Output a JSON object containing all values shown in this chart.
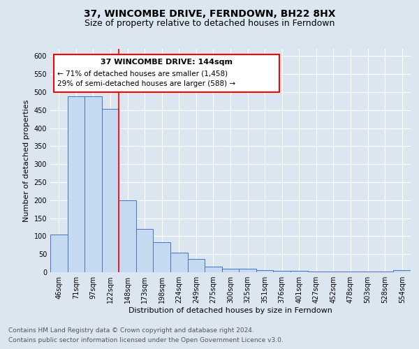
{
  "title": "37, WINCOMBE DRIVE, FERNDOWN, BH22 8HX",
  "subtitle": "Size of property relative to detached houses in Ferndown",
  "xlabel": "Distribution of detached houses by size in Ferndown",
  "ylabel": "Number of detached properties",
  "categories": [
    "46sqm",
    "71sqm",
    "97sqm",
    "122sqm",
    "148sqm",
    "173sqm",
    "198sqm",
    "224sqm",
    "249sqm",
    "275sqm",
    "300sqm",
    "325sqm",
    "351sqm",
    "376sqm",
    "401sqm",
    "427sqm",
    "452sqm",
    "478sqm",
    "503sqm",
    "528sqm",
    "554sqm"
  ],
  "values": [
    105,
    488,
    488,
    453,
    200,
    120,
    83,
    55,
    37,
    15,
    10,
    10,
    5,
    3,
    3,
    2,
    2,
    1,
    1,
    1,
    5
  ],
  "bar_color": "#c5d9f1",
  "bar_edge_color": "#4472c4",
  "ylim": [
    0,
    620
  ],
  "yticks": [
    0,
    50,
    100,
    150,
    200,
    250,
    300,
    350,
    400,
    450,
    500,
    550,
    600
  ],
  "red_line_index": 3,
  "annotation_title": "37 WINCOMBE DRIVE: 144sqm",
  "annotation_line1": "← 71% of detached houses are smaller (1,458)",
  "annotation_line2": "29% of semi-detached houses are larger (588) →",
  "footnote1": "Contains HM Land Registry data © Crown copyright and database right 2024.",
  "footnote2": "Contains public sector information licensed under the Open Government Licence v3.0.",
  "background_color": "#dce6f1",
  "plot_background_color": "#dce6f1",
  "grid_color": "#ffffff",
  "title_fontsize": 10,
  "subtitle_fontsize": 9,
  "label_fontsize": 8,
  "tick_fontsize": 7,
  "footnote_fontsize": 6.5
}
